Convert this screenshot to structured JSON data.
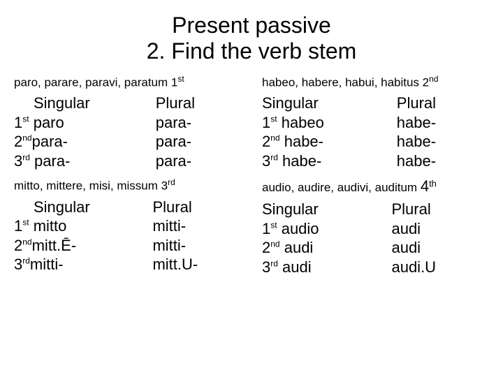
{
  "colors": {
    "bg": "#ffffff",
    "fg": "#000000"
  },
  "title_line1": "Present passive",
  "title_line2": "2. Find the verb stem",
  "blocks": {
    "paro": {
      "pparts": "paro, parare, paravi, paratum 1",
      "pparts_sup": "st",
      "sg_hdr": "Singular",
      "pl_hdr": "Plural",
      "sg1_pre": "1",
      "sg1_sup": "st",
      "sg1_post": " paro",
      "sg2_pre": "2",
      "sg2_sup": "nd",
      "sg2_post": "para-",
      "sg3_pre": "3",
      "sg3_sup": "rd",
      "sg3_post": " para-",
      "pl1": "para-",
      "pl2": "para-",
      "pl3": "para-"
    },
    "habeo": {
      "pparts": "habeo, habere, habui, habitus 2",
      "pparts_sup": "nd",
      "sg_hdr": "Singular",
      "pl_hdr": "Plural",
      "sg1_pre": "1",
      "sg1_sup": "st",
      "sg1_post": " habeo",
      "sg2_pre": "2",
      "sg2_sup": "nd",
      "sg2_post": " habe-",
      "sg3_pre": "3",
      "sg3_sup": "rd",
      "sg3_post": " habe-",
      "pl1": "habe-",
      "pl2": "habe-",
      "pl3": "habe-"
    },
    "mitto": {
      "pparts": "mitto, mittere, misi, missum 3",
      "pparts_sup": "rd",
      "sg_hdr": "Singular",
      "pl_hdr": "Plural",
      "sg1_pre": "1",
      "sg1_sup": "st",
      "sg1_post": " mitto",
      "sg2_pre": "2",
      "sg2_sup": "nd",
      "sg2_post": "mitt.Ē-",
      "sg3_pre": "3",
      "sg3_sup": "rd",
      "sg3_post": "mitti-",
      "pl1": "mitti-",
      "pl2": "mitti-",
      "pl3": "mitt.U-"
    },
    "audio": {
      "pparts": "audio, audire, audivi, auditum ",
      "pparts_tail": "4",
      "pparts_tail_sup": "th",
      "sg_hdr": "Singular",
      "pl_hdr": "Plural",
      "sg1_pre": "1",
      "sg1_sup": "st",
      "sg1_post": " audio",
      "sg2_pre": "2",
      "sg2_sup": "nd",
      "sg2_post": " audi",
      "sg3_pre": "3",
      "sg3_sup": "rd",
      "sg3_post": " audi",
      "pl1": "audi",
      "pl2": "audi",
      "pl3": "audi.U"
    }
  }
}
